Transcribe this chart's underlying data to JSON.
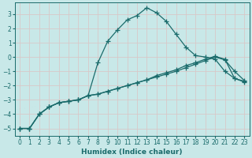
{
  "xlabel": "Humidex (Indice chaleur)",
  "bg_color": "#c8e8e8",
  "grid_color": "#b0d0d0",
  "line_color": "#1a6b6b",
  "xlim": [
    -0.5,
    23.5
  ],
  "ylim": [
    -5.5,
    3.8
  ],
  "yticks": [
    -5,
    -4,
    -3,
    -2,
    -1,
    0,
    1,
    2,
    3
  ],
  "xticks": [
    0,
    1,
    2,
    3,
    4,
    5,
    6,
    7,
    8,
    9,
    10,
    11,
    12,
    13,
    14,
    15,
    16,
    17,
    18,
    19,
    20,
    21,
    22,
    23
  ],
  "line1_x": [
    0,
    1,
    2,
    3,
    4,
    5,
    6,
    7,
    8,
    9,
    10,
    11,
    12,
    13,
    14,
    15,
    16,
    17,
    18,
    19,
    20,
    21,
    22,
    23
  ],
  "line1_y": [
    -5.0,
    -5.0,
    -4.0,
    -3.5,
    -3.2,
    -3.1,
    -3.0,
    -2.7,
    -0.4,
    1.1,
    1.9,
    2.6,
    2.9,
    3.45,
    3.1,
    2.5,
    1.6,
    0.7,
    0.1,
    0.0,
    -0.15,
    -1.0,
    -1.5,
    -1.7
  ],
  "line2_x": [
    0,
    1,
    2,
    3,
    4,
    5,
    6,
    7,
    8,
    9,
    10,
    11,
    12,
    13,
    14,
    15,
    16,
    17,
    18,
    19,
    20,
    21,
    22,
    23
  ],
  "line2_y": [
    -5.0,
    -5.0,
    -4.0,
    -3.5,
    -3.2,
    -3.1,
    -3.0,
    -2.7,
    -2.6,
    -2.4,
    -2.2,
    -2.0,
    -1.8,
    -1.6,
    -1.4,
    -1.2,
    -1.0,
    -0.75,
    -0.5,
    -0.25,
    0.0,
    -0.2,
    -1.0,
    -1.65
  ],
  "line3_x": [
    0,
    1,
    2,
    3,
    4,
    5,
    6,
    7,
    8,
    9,
    10,
    11,
    12,
    13,
    14,
    15,
    16,
    17,
    18,
    19,
    20,
    21,
    22,
    23
  ],
  "line3_y": [
    -5.0,
    -5.0,
    -4.0,
    -3.5,
    -3.2,
    -3.1,
    -3.0,
    -2.7,
    -2.6,
    -2.4,
    -2.2,
    -2.0,
    -1.8,
    -1.6,
    -1.3,
    -1.1,
    -0.9,
    -0.6,
    -0.4,
    -0.15,
    0.05,
    -0.15,
    -1.5,
    -1.75
  ]
}
